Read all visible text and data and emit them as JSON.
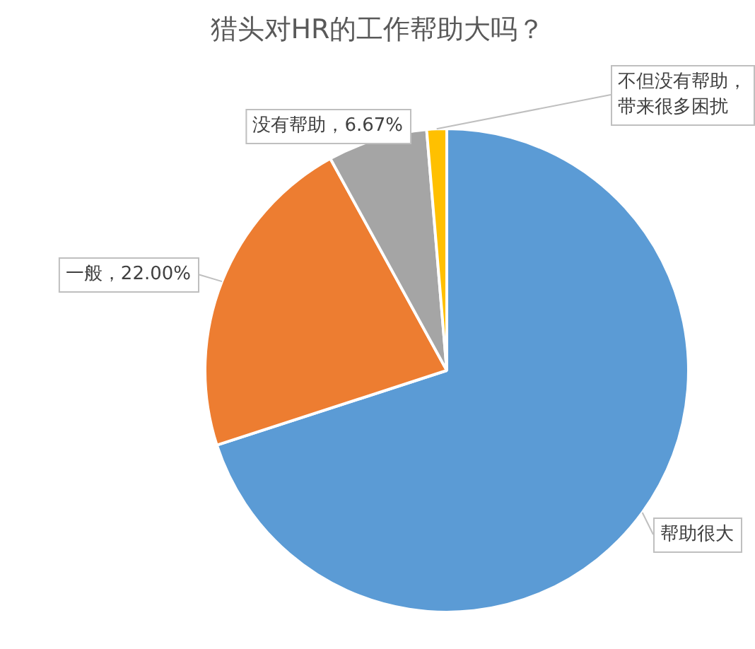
{
  "chart_data": {
    "type": "pie",
    "title": "猎头对HR的工作帮助大吗？",
    "categories": [
      "帮助很大",
      "一般",
      "没有帮助",
      "不但没有帮助，带来很多困扰"
    ],
    "values": [
      70,
      22,
      6.67,
      1.33
    ],
    "colors": [
      "#5b9bd5",
      "#ed7d31",
      "#a5a5a5",
      "#ffc000"
    ],
    "value_labels": [
      null,
      "22.00%",
      "6.67%",
      null
    ],
    "legend": false
  }
}
